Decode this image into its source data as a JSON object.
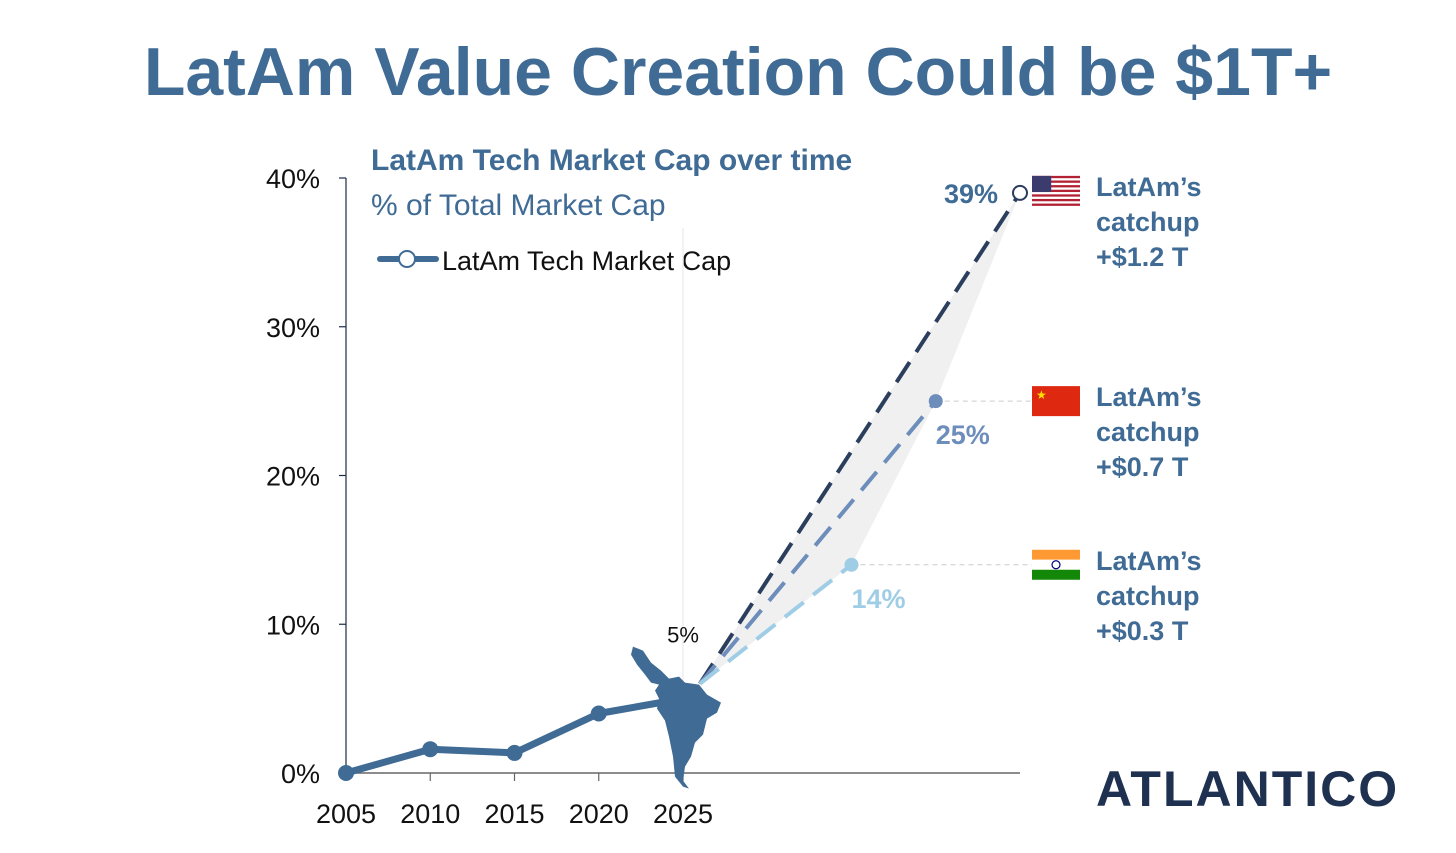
{
  "title": "LatAm Value Creation Could be $1T+",
  "logo_text": "ATLANTICO",
  "colors": {
    "title": "#3f6b95",
    "axis": "#1d2b45",
    "series": "#3f6b95",
    "us": "#2c3e5e",
    "china": "#6d8dbb",
    "india": "#9fcde6",
    "logo": "#1f3150"
  },
  "chart_data": {
    "type": "line",
    "title": "LatAm Tech Market Cap over time",
    "subtitle": "% of Total Market Cap",
    "xlabel": "",
    "ylabel": "",
    "xlim": [
      2005,
      2045
    ],
    "ylim": [
      0,
      40
    ],
    "x_ticks": [
      "2005",
      "2010",
      "2015",
      "2020",
      "2025"
    ],
    "x_tick_values": [
      2005,
      2010,
      2015,
      2020,
      2025
    ],
    "y_ticks": [
      "0%",
      "10%",
      "20%",
      "30%",
      "40%"
    ],
    "y_tick_values": [
      0,
      10,
      20,
      30,
      40
    ],
    "legend": {
      "label": "LatAm Tech Market Cap",
      "placement": "top-left"
    },
    "series": [
      {
        "name": "LatAm Tech Market Cap",
        "x": [
          2005,
          2010,
          2015,
          2020,
          2025
        ],
        "values": [
          0,
          1.6,
          1.35,
          4.0,
          5.0
        ]
      }
    ],
    "current_label": "5%",
    "projection_start": {
      "x": 2026,
      "y": 6
    },
    "scenarios": [
      {
        "name": "US",
        "x": 2045,
        "value": 39,
        "label": "39%",
        "flag": "us-flag",
        "note": [
          "LatAm’s",
          "catchup",
          "+$1.2 T"
        ]
      },
      {
        "name": "China",
        "x": 2040,
        "value": 25,
        "label": "25%",
        "flag": "china-flag",
        "note": [
          "LatAm’s",
          "catchup",
          "+$0.7 T"
        ]
      },
      {
        "name": "India",
        "x": 2035,
        "value": 14,
        "label": "14%",
        "flag": "india-flag",
        "note": [
          "LatAm’s",
          "catchup",
          "+$0.3 T"
        ]
      }
    ]
  }
}
